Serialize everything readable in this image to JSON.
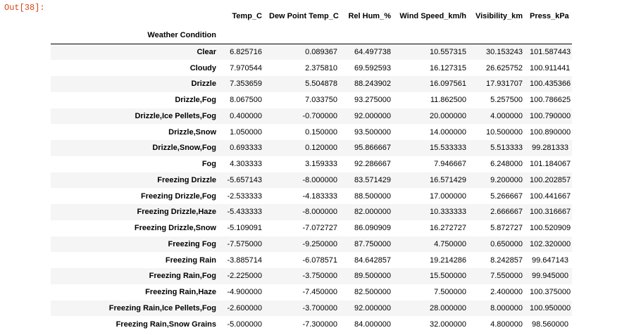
{
  "prompt": "Out[38]:",
  "index_name": "Weather Condition",
  "columns": [
    "Temp_C",
    "Dew Point Temp_C",
    "Rel Hum_%",
    "Wind Speed_km/h",
    "Visibility_km",
    "Press_kPa"
  ],
  "rows": [
    {
      "label": "Clear",
      "values": [
        "6.825716",
        "0.089367",
        "64.497738",
        "10.557315",
        "30.153243",
        "101.587443"
      ]
    },
    {
      "label": "Cloudy",
      "values": [
        "7.970544",
        "2.375810",
        "69.592593",
        "16.127315",
        "26.625752",
        "100.911441"
      ]
    },
    {
      "label": "Drizzle",
      "values": [
        "7.353659",
        "5.504878",
        "88.243902",
        "16.097561",
        "17.931707",
        "100.435366"
      ]
    },
    {
      "label": "Drizzle,Fog",
      "values": [
        "8.067500",
        "7.033750",
        "93.275000",
        "11.862500",
        "5.257500",
        "100.786625"
      ]
    },
    {
      "label": "Drizzle,Ice Pellets,Fog",
      "values": [
        "0.400000",
        "-0.700000",
        "92.000000",
        "20.000000",
        "4.000000",
        "100.790000"
      ]
    },
    {
      "label": "Drizzle,Snow",
      "values": [
        "1.050000",
        "0.150000",
        "93.500000",
        "14.000000",
        "10.500000",
        "100.890000"
      ]
    },
    {
      "label": "Drizzle,Snow,Fog",
      "values": [
        "0.693333",
        "0.120000",
        "95.866667",
        "15.533333",
        "5.513333",
        "99.281333"
      ]
    },
    {
      "label": "Fog",
      "values": [
        "4.303333",
        "3.159333",
        "92.286667",
        "7.946667",
        "6.248000",
        "101.184067"
      ]
    },
    {
      "label": "Freezing Drizzle",
      "values": [
        "-5.657143",
        "-8.000000",
        "83.571429",
        "16.571429",
        "9.200000",
        "100.202857"
      ]
    },
    {
      "label": "Freezing Drizzle,Fog",
      "values": [
        "-2.533333",
        "-4.183333",
        "88.500000",
        "17.000000",
        "5.266667",
        "100.441667"
      ]
    },
    {
      "label": "Freezing Drizzle,Haze",
      "values": [
        "-5.433333",
        "-8.000000",
        "82.000000",
        "10.333333",
        "2.666667",
        "100.316667"
      ]
    },
    {
      "label": "Freezing Drizzle,Snow",
      "values": [
        "-5.109091",
        "-7.072727",
        "86.090909",
        "16.272727",
        "5.872727",
        "100.520909"
      ]
    },
    {
      "label": "Freezing Fog",
      "values": [
        "-7.575000",
        "-9.250000",
        "87.750000",
        "4.750000",
        "0.650000",
        "102.320000"
      ]
    },
    {
      "label": "Freezing Rain",
      "values": [
        "-3.885714",
        "-6.078571",
        "84.642857",
        "19.214286",
        "8.242857",
        "99.647143"
      ]
    },
    {
      "label": "Freezing Rain,Fog",
      "values": [
        "-2.225000",
        "-3.750000",
        "89.500000",
        "15.500000",
        "7.550000",
        "99.945000"
      ]
    },
    {
      "label": "Freezing Rain,Haze",
      "values": [
        "-4.900000",
        "-7.450000",
        "82.500000",
        "7.500000",
        "2.400000",
        "100.375000"
      ]
    },
    {
      "label": "Freezing Rain,Ice Pellets,Fog",
      "values": [
        "-2.600000",
        "-3.700000",
        "92.000000",
        "28.000000",
        "8.000000",
        "100.950000"
      ]
    },
    {
      "label": "Freezing Rain,Snow Grains",
      "values": [
        "-5.000000",
        "-7.300000",
        "84.000000",
        "32.000000",
        "4.800000",
        "98.560000"
      ]
    }
  ]
}
